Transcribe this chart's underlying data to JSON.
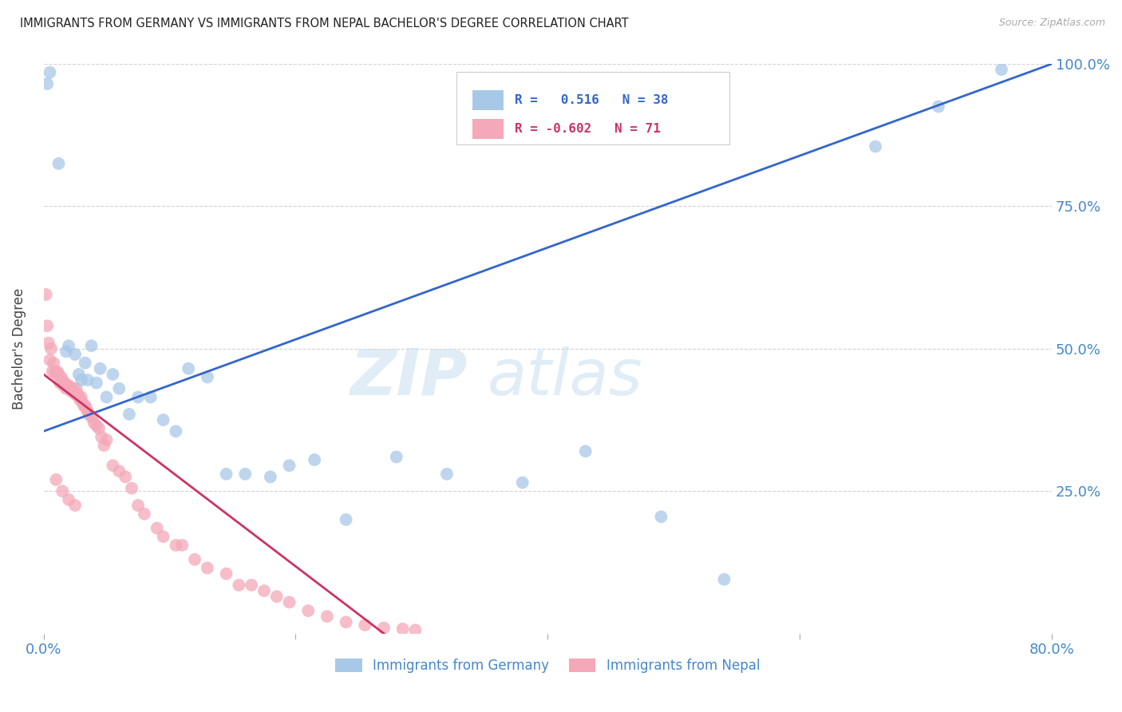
{
  "title": "IMMIGRANTS FROM GERMANY VS IMMIGRANTS FROM NEPAL BACHELOR'S DEGREE CORRELATION CHART",
  "source": "Source: ZipAtlas.com",
  "ylabel": "Bachelor's Degree",
  "watermark_zip": "ZIP",
  "watermark_atlas": "atlas",
  "legend_label_germany": "Immigrants from Germany",
  "legend_label_nepal": "Immigrants from Nepal",
  "xmin": 0.0,
  "xmax": 0.8,
  "ymin": 0.0,
  "ymax": 1.0,
  "yticks": [
    0.0,
    0.25,
    0.5,
    0.75,
    1.0
  ],
  "ytick_labels": [
    "",
    "25.0%",
    "50.0%",
    "75.0%",
    "100.0%"
  ],
  "xticks": [
    0.0,
    0.2,
    0.4,
    0.6,
    0.8
  ],
  "xtick_labels": [
    "0.0%",
    "",
    "",
    "",
    "80.0%"
  ],
  "color_germany": "#a8c8e8",
  "color_nepal": "#f4a8b8",
  "color_germany_line": "#3366cc",
  "color_nepal_line": "#cc3366",
  "color_axis_labels": "#4488cc",
  "background": "#ffffff",
  "germany_line_x": [
    0.0,
    0.8
  ],
  "germany_line_y": [
    0.355,
    1.0
  ],
  "nepal_line_x": [
    0.0,
    0.27
  ],
  "nepal_line_y": [
    0.455,
    0.0
  ],
  "germany_scatter_x": [
    0.003,
    0.005,
    0.012,
    0.018,
    0.02,
    0.025,
    0.028,
    0.03,
    0.033,
    0.035,
    0.038,
    0.042,
    0.045,
    0.05,
    0.055,
    0.06,
    0.068,
    0.075,
    0.085,
    0.095,
    0.105,
    0.115,
    0.13,
    0.145,
    0.16,
    0.18,
    0.195,
    0.215,
    0.24,
    0.28,
    0.32,
    0.38,
    0.43,
    0.49,
    0.54,
    0.66,
    0.71,
    0.76
  ],
  "germany_scatter_y": [
    0.965,
    0.985,
    0.825,
    0.495,
    0.505,
    0.49,
    0.455,
    0.445,
    0.475,
    0.445,
    0.505,
    0.44,
    0.465,
    0.415,
    0.455,
    0.43,
    0.385,
    0.415,
    0.415,
    0.375,
    0.355,
    0.465,
    0.45,
    0.28,
    0.28,
    0.275,
    0.295,
    0.305,
    0.2,
    0.31,
    0.28,
    0.265,
    0.32,
    0.205,
    0.095,
    0.855,
    0.925,
    0.99
  ],
  "nepal_scatter_x": [
    0.002,
    0.003,
    0.004,
    0.005,
    0.006,
    0.007,
    0.008,
    0.009,
    0.01,
    0.011,
    0.012,
    0.013,
    0.014,
    0.015,
    0.016,
    0.017,
    0.018,
    0.019,
    0.02,
    0.021,
    0.022,
    0.023,
    0.024,
    0.025,
    0.026,
    0.027,
    0.028,
    0.029,
    0.03,
    0.031,
    0.032,
    0.033,
    0.034,
    0.035,
    0.036,
    0.038,
    0.04,
    0.042,
    0.044,
    0.046,
    0.048,
    0.05,
    0.055,
    0.06,
    0.065,
    0.07,
    0.075,
    0.08,
    0.09,
    0.095,
    0.105,
    0.11,
    0.12,
    0.13,
    0.145,
    0.155,
    0.165,
    0.175,
    0.185,
    0.195,
    0.21,
    0.225,
    0.24,
    0.255,
    0.27,
    0.285,
    0.295,
    0.01,
    0.015,
    0.02,
    0.025
  ],
  "nepal_scatter_y": [
    0.595,
    0.54,
    0.51,
    0.48,
    0.5,
    0.46,
    0.475,
    0.46,
    0.455,
    0.46,
    0.455,
    0.44,
    0.45,
    0.445,
    0.435,
    0.44,
    0.43,
    0.435,
    0.435,
    0.43,
    0.425,
    0.43,
    0.425,
    0.42,
    0.43,
    0.42,
    0.415,
    0.41,
    0.415,
    0.405,
    0.4,
    0.4,
    0.395,
    0.39,
    0.385,
    0.38,
    0.37,
    0.365,
    0.36,
    0.345,
    0.33,
    0.34,
    0.295,
    0.285,
    0.275,
    0.255,
    0.225,
    0.21,
    0.185,
    0.17,
    0.155,
    0.155,
    0.13,
    0.115,
    0.105,
    0.085,
    0.085,
    0.075,
    0.065,
    0.055,
    0.04,
    0.03,
    0.02,
    0.015,
    0.01,
    0.008,
    0.006,
    0.27,
    0.25,
    0.235,
    0.225
  ]
}
